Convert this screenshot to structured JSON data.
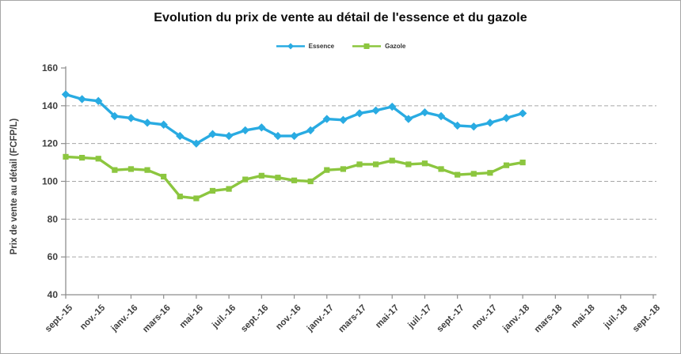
{
  "chart_data": {
    "type": "line",
    "title": "Evolution du prix de vente au détail de l'essence et du gazole",
    "ylabel": "Prix de vente au détail (FCFP/L)",
    "ylim": [
      40,
      160
    ],
    "yticks": [
      40,
      60,
      80,
      100,
      120,
      140,
      160
    ],
    "grid": "dashed-horizontal",
    "legend_position": "top-center",
    "x_total_months": 36,
    "x_tick_labels": [
      "sept.-15",
      "nov.-15",
      "janv.-16",
      "mars-16",
      "mai-16",
      "juil.-16",
      "sept.-16",
      "nov.-16",
      "janv.-17",
      "mars-17",
      "mai-17",
      "juil.-17",
      "sept.-17",
      "nov.-17",
      "janv.-18",
      "mars-18",
      "mai-18",
      "juil.-18",
      "sept.-18"
    ],
    "x_months": [
      "sept.-15",
      "oct.-15",
      "nov.-15",
      "déc.-15",
      "janv.-16",
      "févr.-16",
      "mars-16",
      "avr.-16",
      "mai-16",
      "juin-16",
      "juil.-16",
      "août-16",
      "sept.-16",
      "oct.-16",
      "nov.-16",
      "déc.-16",
      "janv.-17",
      "févr.-17",
      "mars-17",
      "avr.-17",
      "mai-17",
      "juin-17",
      "juil.-17",
      "août-17",
      "sept.-17",
      "oct.-17",
      "nov.-17",
      "déc.-17",
      "janv.-18"
    ],
    "series": [
      {
        "name": "Essence",
        "color": "#29ABE2",
        "marker": "diamond",
        "values": [
          146,
          143.5,
          142.5,
          134.5,
          133.5,
          131,
          130,
          124,
          120,
          125,
          124,
          127,
          128.5,
          124,
          124,
          127,
          133,
          132.5,
          136,
          137.5,
          139.5,
          133,
          136.5,
          134.5,
          129.5,
          129,
          131,
          133.5,
          136
        ]
      },
      {
        "name": "Gazole",
        "color": "#8CC63F",
        "marker": "square",
        "values": [
          113,
          112.5,
          112,
          106,
          106.5,
          106,
          102.5,
          92,
          91,
          95,
          96,
          101,
          103,
          102,
          100.5,
          100,
          106,
          106.5,
          109,
          109,
          111,
          109,
          109.5,
          106.5,
          103.5,
          104,
          104.5,
          108.5,
          110
        ]
      }
    ],
    "colors": {
      "axis": "#8e8e8e",
      "gridline": "#a6a6a6",
      "tick_text": "#3f3f3f",
      "title_text": "#0d0d0d",
      "frame_border": "#a6a6a6",
      "background": "#ffffff"
    }
  }
}
